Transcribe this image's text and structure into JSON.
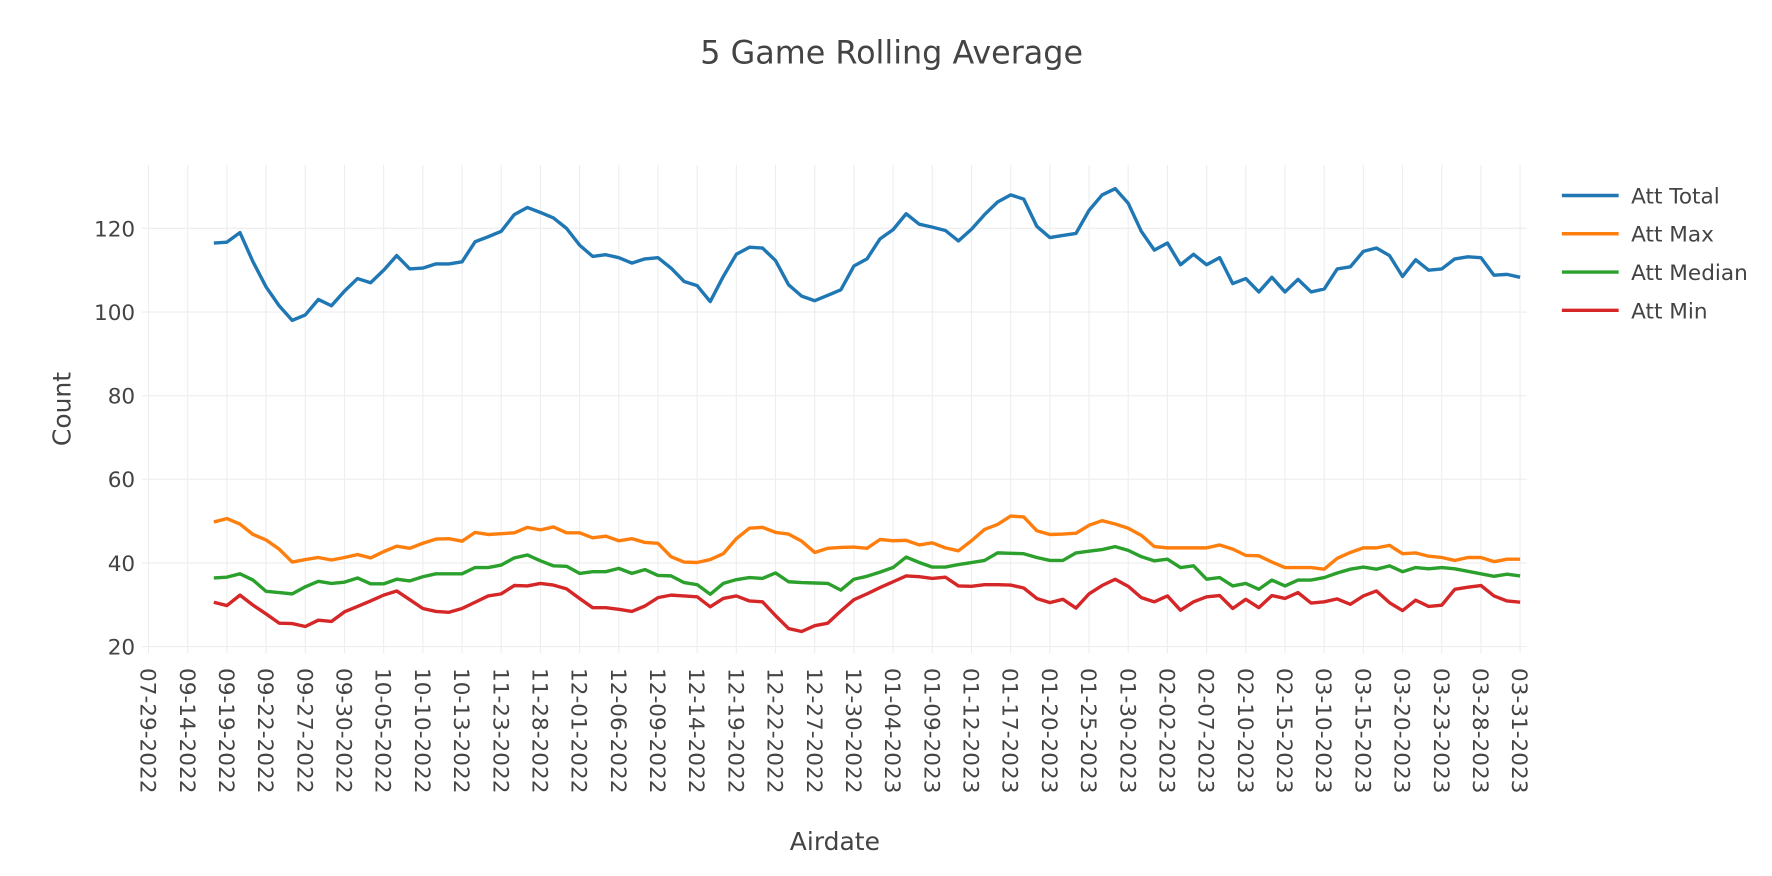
{
  "chart_data": {
    "type": "line",
    "title": "5 Game Rolling Average",
    "x_label": "Airdate",
    "y_label": "Count",
    "categories": [
      "07-29-2022",
      null,
      null,
      "09-14-2022",
      null,
      null,
      "09-19-2022",
      null,
      null,
      "09-22-2022",
      null,
      null,
      "09-27-2022",
      null,
      null,
      "09-30-2022",
      null,
      null,
      "10-05-2022",
      null,
      null,
      "10-10-2022",
      null,
      null,
      "10-13-2022",
      null,
      null,
      "11-23-2022",
      null,
      null,
      "11-28-2022",
      null,
      null,
      "12-01-2022",
      null,
      null,
      "12-06-2022",
      null,
      null,
      "12-09-2022",
      null,
      null,
      "12-14-2022",
      null,
      null,
      "12-19-2022",
      null,
      null,
      "12-22-2022",
      null,
      null,
      "12-27-2022",
      null,
      null,
      "12-30-2022",
      null,
      null,
      "01-04-2023",
      null,
      null,
      "01-09-2023",
      null,
      null,
      "01-12-2023",
      null,
      null,
      "01-17-2023",
      null,
      null,
      "01-20-2023",
      null,
      null,
      "01-25-2023",
      null,
      null,
      "01-30-2023",
      null,
      null,
      "02-02-2023",
      null,
      null,
      "02-07-2023",
      null,
      null,
      "02-10-2023",
      null,
      null,
      "02-15-2023",
      null,
      null,
      "03-10-2023",
      null,
      null,
      "03-15-2023",
      null,
      null,
      "03-20-2023",
      null,
      null,
      "03-23-2023",
      null,
      null,
      "03-28-2023",
      null,
      null,
      "03-31-2023"
    ],
    "series": [
      {
        "name": "Att Total",
        "color": "#1f77b4",
        "values": [
          null,
          null,
          null,
          null,
          null,
          116.5,
          116.7,
          119,
          112,
          106,
          101.5,
          98,
          99.3,
          103,
          101.5,
          105,
          108,
          107,
          110,
          113.5,
          110.3,
          110.5,
          111.5,
          111.5,
          112,
          116.8,
          118,
          119.3,
          123.3,
          125,
          123.8,
          122.5,
          120,
          116,
          113.3,
          113.7,
          113,
          111.7,
          112.7,
          113,
          110.5,
          107.3,
          106.3,
          102.5,
          108.5,
          113.8,
          115.5,
          115.3,
          112.3,
          106.5,
          103.8,
          102.7,
          104,
          105.3,
          111,
          112.7,
          117.5,
          119.7,
          123.5,
          121,
          120.3,
          119.5,
          117,
          119.8,
          123.3,
          126.3,
          128,
          127,
          120.5,
          117.8,
          118.3,
          118.8,
          124.3,
          128,
          129.5,
          126,
          119.3,
          114.8,
          116.5,
          111.3,
          113.8,
          111.3,
          113,
          106.8,
          108,
          104.8,
          108.3,
          104.8,
          107.8,
          104.8,
          105.5,
          110.3,
          110.8,
          114.5,
          115.3,
          113.5,
          108.5,
          112.5,
          110,
          110.3,
          112.7,
          113.2,
          113,
          108.8,
          109,
          108.3
        ]
      },
      {
        "name": "Att Max",
        "color": "#ff7f0e",
        "values": [
          null,
          null,
          null,
          null,
          null,
          49.8,
          50.6,
          49.3,
          46.8,
          45.5,
          43.3,
          40.2,
          40.8,
          41.3,
          40.7,
          41.3,
          42,
          41.2,
          42.7,
          44,
          43.5,
          44.7,
          45.7,
          45.8,
          45.2,
          47.3,
          46.8,
          47,
          47.2,
          48.5,
          47.9,
          48.6,
          47.2,
          47.2,
          46,
          46.4,
          45.3,
          45.8,
          44.9,
          44.7,
          41.5,
          40.2,
          40.1,
          40.8,
          42.2,
          45.8,
          48.3,
          48.5,
          47.3,
          46.9,
          45.2,
          42.5,
          43.5,
          43.7,
          43.8,
          43.5,
          45.6,
          45.3,
          45.4,
          44.3,
          44.8,
          43.6,
          42.9,
          45.3,
          48,
          49.2,
          51.2,
          51,
          47.7,
          46.8,
          46.9,
          47.1,
          49,
          50.1,
          49.3,
          48.3,
          46.6,
          43.9,
          43.6,
          43.6,
          43.6,
          43.6,
          44.3,
          43.3,
          41.8,
          41.7,
          40.2,
          38.9,
          38.9,
          38.9,
          38.5,
          41.1,
          42.5,
          43.6,
          43.6,
          44.2,
          42.2,
          42.4,
          41.6,
          41.3,
          40.6,
          41.3,
          41.3,
          40.3,
          40.9,
          40.9
        ]
      },
      {
        "name": "Att Median",
        "color": "#2ca02c",
        "values": [
          null,
          null,
          null,
          null,
          null,
          36.4,
          36.6,
          37.4,
          35.9,
          33.2,
          32.9,
          32.6,
          34.3,
          35.6,
          35.1,
          35.4,
          36.4,
          35,
          35,
          36.1,
          35.7,
          36.7,
          37.4,
          37.4,
          37.4,
          38.9,
          38.9,
          39.5,
          41.2,
          41.9,
          40.5,
          39.3,
          39.2,
          37.5,
          37.9,
          37.9,
          38.7,
          37.5,
          38.4,
          37,
          36.9,
          35.3,
          34.8,
          32.5,
          35.1,
          36,
          36.5,
          36.3,
          37.6,
          35.5,
          35.3,
          35.2,
          35.1,
          33.5,
          36.1,
          36.8,
          37.8,
          38.9,
          41.4,
          40.1,
          39,
          39,
          39.6,
          40.1,
          40.6,
          42.4,
          42.3,
          42.2,
          41.3,
          40.6,
          40.6,
          42.4,
          42.8,
          43.2,
          43.9,
          43,
          41.5,
          40.5,
          40.9,
          38.9,
          39.3,
          36.1,
          36.5,
          34.5,
          35.1,
          33.7,
          35.9,
          34.5,
          35.9,
          35.9,
          36.5,
          37.6,
          38.5,
          39,
          38.5,
          39.3,
          37.9,
          38.9,
          38.6,
          38.9,
          38.6,
          38,
          37.4,
          36.8,
          37.3,
          36.9
        ]
      },
      {
        "name": "Att Min",
        "color": "#d62728",
        "values": [
          null,
          null,
          null,
          null,
          null,
          30.6,
          29.8,
          32.3,
          29.9,
          27.8,
          25.6,
          25.5,
          24.8,
          26.3,
          26,
          28.3,
          29.6,
          30.9,
          32.3,
          33.3,
          31.2,
          29.1,
          28.4,
          28.2,
          29.1,
          30.6,
          32.1,
          32.6,
          34.6,
          34.5,
          35.1,
          34.7,
          33.8,
          31.5,
          29.3,
          29.3,
          28.9,
          28.4,
          29.7,
          31.7,
          32.3,
          32.1,
          31.9,
          29.5,
          31.5,
          32.1,
          30.9,
          30.7,
          27.4,
          24.3,
          23.6,
          25,
          25.6,
          28.5,
          31.2,
          32.6,
          34.1,
          35.5,
          36.9,
          36.7,
          36.3,
          36.6,
          34.5,
          34.4,
          34.8,
          34.8,
          34.7,
          34,
          31.5,
          30.5,
          31.3,
          29.2,
          32.6,
          34.6,
          36.1,
          34.4,
          31.7,
          30.7,
          32.1,
          28.7,
          30.7,
          31.9,
          32.2,
          29.1,
          31.3,
          29.3,
          32.2,
          31.5,
          32.9,
          30.4,
          30.7,
          31.4,
          30.1,
          32.1,
          33.3,
          30.5,
          28.6,
          31.1,
          29.6,
          29.9,
          33.7,
          34.2,
          34.6,
          32.1,
          30.9,
          30.6
        ]
      }
    ],
    "ylim": [
      18.4,
      135.2
    ],
    "yticks": [
      20,
      40,
      60,
      80,
      100,
      120
    ],
    "grid": true,
    "legend": "right"
  }
}
